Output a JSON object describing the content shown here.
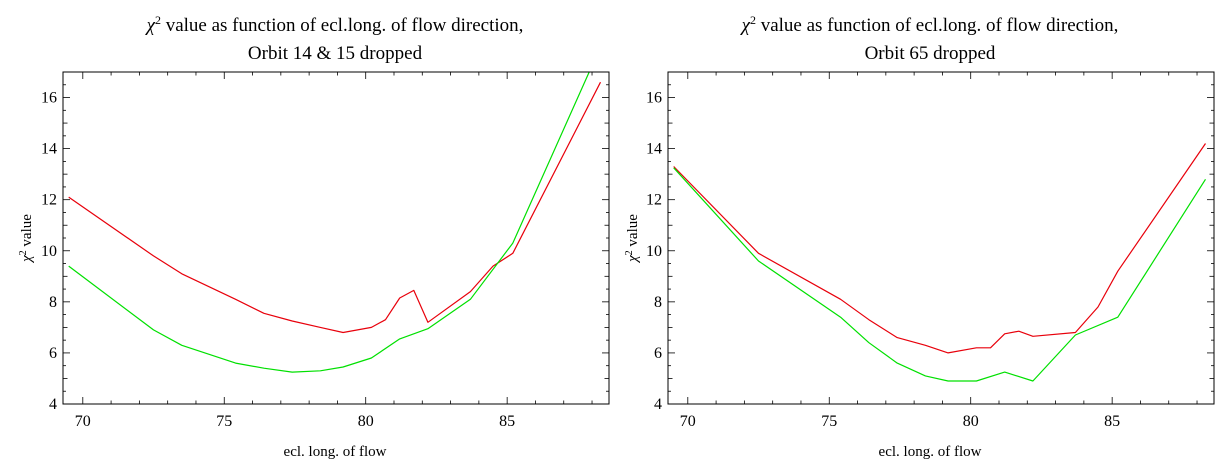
{
  "chart_data": [
    {
      "type": "line",
      "title_prefix": "χ",
      "title_sup": "2",
      "title_rest": " value as function of ecl.long. of flow direction,",
      "subtitle": "Orbit 14 & 15 dropped",
      "xlabel": "ecl. long. of flow",
      "ylabel_prefix": "χ",
      "ylabel_sup": "2",
      "ylabel_rest": " value",
      "xlim": [
        69.3,
        88.6
      ],
      "ylim": [
        4,
        17
      ],
      "xticks": [
        70,
        75,
        80,
        85
      ],
      "yticks": [
        4,
        6,
        8,
        10,
        12,
        14,
        16
      ],
      "grid": false,
      "series": [
        {
          "color": "#e8000b",
          "x": [
            69.5,
            72.5,
            73.5,
            75.4,
            76.4,
            77.4,
            78.4,
            79.2,
            80.2,
            80.7,
            81.2,
            81.7,
            82.2,
            83.7,
            84.5,
            85.2,
            88.3
          ],
          "y": [
            12.1,
            9.8,
            9.1,
            8.1,
            7.55,
            7.25,
            7.0,
            6.8,
            7.0,
            7.3,
            8.15,
            8.45,
            7.2,
            8.4,
            9.4,
            9.9,
            16.6
          ]
        },
        {
          "color": "#00e000",
          "x": [
            69.5,
            72.5,
            73.5,
            75.4,
            76.4,
            77.4,
            78.4,
            79.2,
            80.2,
            81.2,
            82.2,
            83.7,
            85.2,
            87.9
          ],
          "y": [
            9.4,
            6.9,
            6.3,
            5.6,
            5.4,
            5.25,
            5.3,
            5.45,
            5.8,
            6.55,
            6.95,
            8.1,
            10.3,
            17.0
          ]
        }
      ]
    },
    {
      "type": "line",
      "title_prefix": "χ",
      "title_sup": "2",
      "title_rest": " value as function of ecl.long. of flow direction,",
      "subtitle": "Orbit 65 dropped",
      "xlabel": "ecl. long. of flow",
      "ylabel_prefix": "χ",
      "ylabel_sup": "2",
      "ylabel_rest": " value",
      "xlim": [
        69.3,
        88.6
      ],
      "ylim": [
        4,
        17
      ],
      "xticks": [
        70,
        75,
        80,
        85
      ],
      "yticks": [
        4,
        6,
        8,
        10,
        12,
        14,
        16
      ],
      "grid": false,
      "series": [
        {
          "color": "#e8000b",
          "x": [
            69.5,
            72.5,
            75.4,
            76.4,
            77.4,
            78.4,
            79.2,
            80.2,
            80.7,
            81.2,
            81.7,
            82.2,
            83.7,
            84.5,
            85.2,
            88.3
          ],
          "y": [
            13.3,
            9.9,
            8.1,
            7.3,
            6.6,
            6.3,
            6.0,
            6.2,
            6.2,
            6.75,
            6.85,
            6.65,
            6.8,
            7.8,
            9.2,
            14.2
          ]
        },
        {
          "color": "#00e000",
          "x": [
            69.5,
            72.5,
            75.4,
            76.4,
            77.4,
            78.4,
            79.2,
            80.2,
            81.2,
            82.2,
            83.7,
            85.2,
            88.3
          ],
          "y": [
            13.25,
            9.6,
            7.4,
            6.4,
            5.6,
            5.1,
            4.9,
            4.9,
            5.25,
            4.9,
            6.7,
            7.4,
            12.8
          ]
        }
      ]
    }
  ]
}
